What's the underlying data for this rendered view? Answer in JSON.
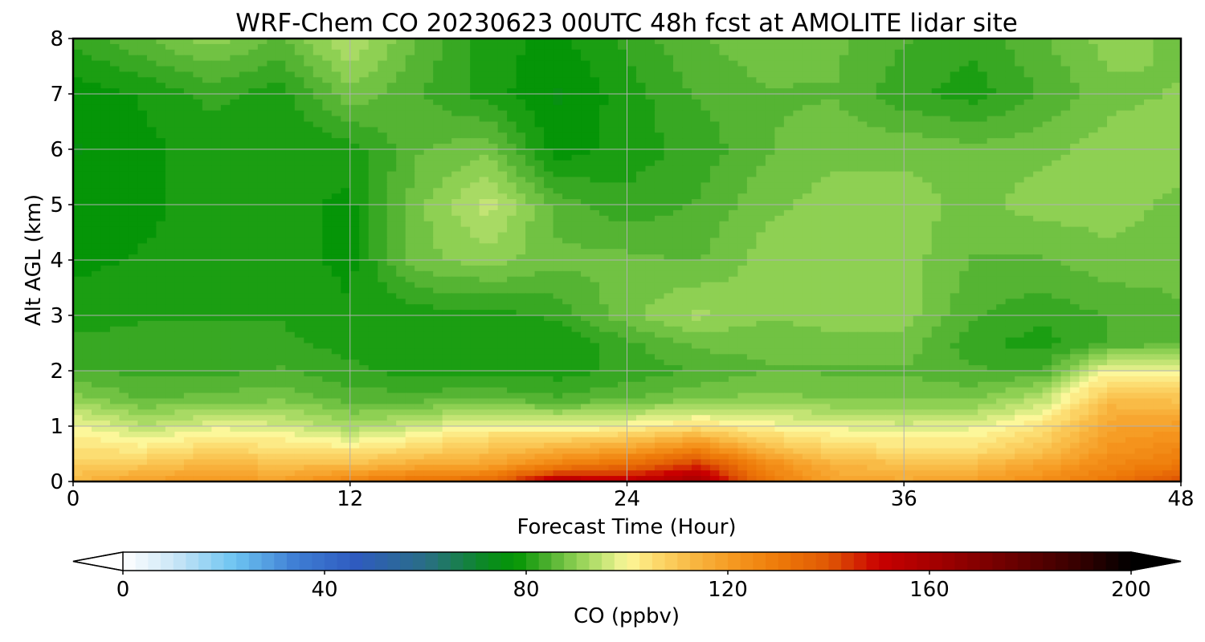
{
  "chart_data": {
    "type": "heatmap",
    "title": "WRF-Chem CO  20230623 00UTC 48h fcst at AMOLITE lidar site",
    "xlabel": "Forecast Time (Hour)",
    "ylabel": "Alt AGL (km)",
    "xlim": [
      0,
      48
    ],
    "ylim": [
      0,
      8
    ],
    "x_ticks": [
      0,
      12,
      24,
      36,
      48
    ],
    "y_ticks": [
      0,
      1,
      2,
      3,
      4,
      5,
      6,
      7,
      8
    ],
    "grid": true,
    "x": [
      0,
      3,
      6,
      9,
      12,
      15,
      18,
      21,
      24,
      27,
      30,
      33,
      36,
      39,
      42,
      45,
      48
    ],
    "y": [
      0.05,
      0.3,
      0.6,
      1.0,
      1.5,
      2.0,
      2.5,
      3.0,
      4.0,
      5.0,
      6.0,
      7.0,
      8.0
    ],
    "values": [
      [
        112,
        118,
        120,
        118,
        125,
        130,
        132,
        152,
        150,
        158,
        130,
        118,
        116,
        118,
        124,
        130,
        140
      ],
      [
        108,
        110,
        114,
        112,
        112,
        116,
        118,
        128,
        134,
        145,
        126,
        114,
        112,
        112,
        118,
        126,
        130
      ],
      [
        104,
        102,
        106,
        104,
        102,
        106,
        110,
        114,
        118,
        126,
        112,
        106,
        104,
        104,
        110,
        122,
        126
      ],
      [
        100,
        94,
        98,
        97,
        92,
        96,
        100,
        98,
        100,
        104,
        100,
        98,
        97,
        98,
        104,
        118,
        120
      ],
      [
        90,
        86,
        87,
        88,
        85,
        85,
        86,
        84,
        86,
        88,
        90,
        88,
        88,
        88,
        94,
        112,
        110
      ],
      [
        84,
        83,
        83,
        84,
        82,
        80,
        80,
        80,
        82,
        84,
        86,
        86,
        86,
        84,
        84,
        100,
        98
      ],
      [
        82,
        82,
        82,
        82,
        80,
        79,
        79,
        79,
        83,
        87,
        87,
        88,
        88,
        82,
        80,
        84,
        86
      ],
      [
        80,
        81,
        81,
        81,
        79,
        80,
        80,
        82,
        88,
        92,
        89,
        90,
        90,
        84,
        82,
        84,
        86
      ],
      [
        78,
        79,
        80,
        80,
        78,
        88,
        90,
        87,
        87,
        86,
        90,
        90,
        90,
        86,
        86,
        88,
        87
      ],
      [
        77,
        78,
        80,
        80,
        78,
        88,
        95,
        85,
        82,
        84,
        88,
        90,
        90,
        88,
        90,
        90,
        88
      ],
      [
        76,
        78,
        80,
        79,
        80,
        86,
        88,
        77,
        80,
        82,
        86,
        88,
        88,
        87,
        88,
        90,
        90
      ],
      [
        77,
        79,
        82,
        80,
        88,
        84,
        80,
        76,
        80,
        84,
        86,
        86,
        82,
        80,
        84,
        88,
        89
      ],
      [
        82,
        86,
        90,
        86,
        94,
        86,
        80,
        78,
        82,
        86,
        88,
        87,
        84,
        82,
        86,
        90,
        88
      ]
    ],
    "colorbar": {
      "label": "CO  (ppbv)",
      "min": 0,
      "max": 200,
      "ticks": [
        0,
        40,
        80,
        120,
        160,
        200
      ],
      "extend": "both",
      "color_stops": [
        [
          0,
          "#ffffff"
        ],
        [
          10,
          "#cce7f7"
        ],
        [
          22,
          "#6ec5f2"
        ],
        [
          34,
          "#3f7fd4"
        ],
        [
          46,
          "#2f5bc0"
        ],
        [
          60,
          "#2a6e86"
        ],
        [
          72,
          "#0b8a22"
        ],
        [
          78,
          "#049604"
        ],
        [
          84,
          "#49ae2d"
        ],
        [
          90,
          "#8ed053"
        ],
        [
          96,
          "#cde87b"
        ],
        [
          100,
          "#fcf79a"
        ],
        [
          106,
          "#fcd86a"
        ],
        [
          114,
          "#f8b43e"
        ],
        [
          122,
          "#f5951d"
        ],
        [
          130,
          "#ee7a09"
        ],
        [
          140,
          "#e05804"
        ],
        [
          150,
          "#c90000"
        ],
        [
          162,
          "#a00000"
        ],
        [
          176,
          "#6c0000"
        ],
        [
          190,
          "#340000"
        ],
        [
          200,
          "#000000"
        ]
      ]
    }
  }
}
